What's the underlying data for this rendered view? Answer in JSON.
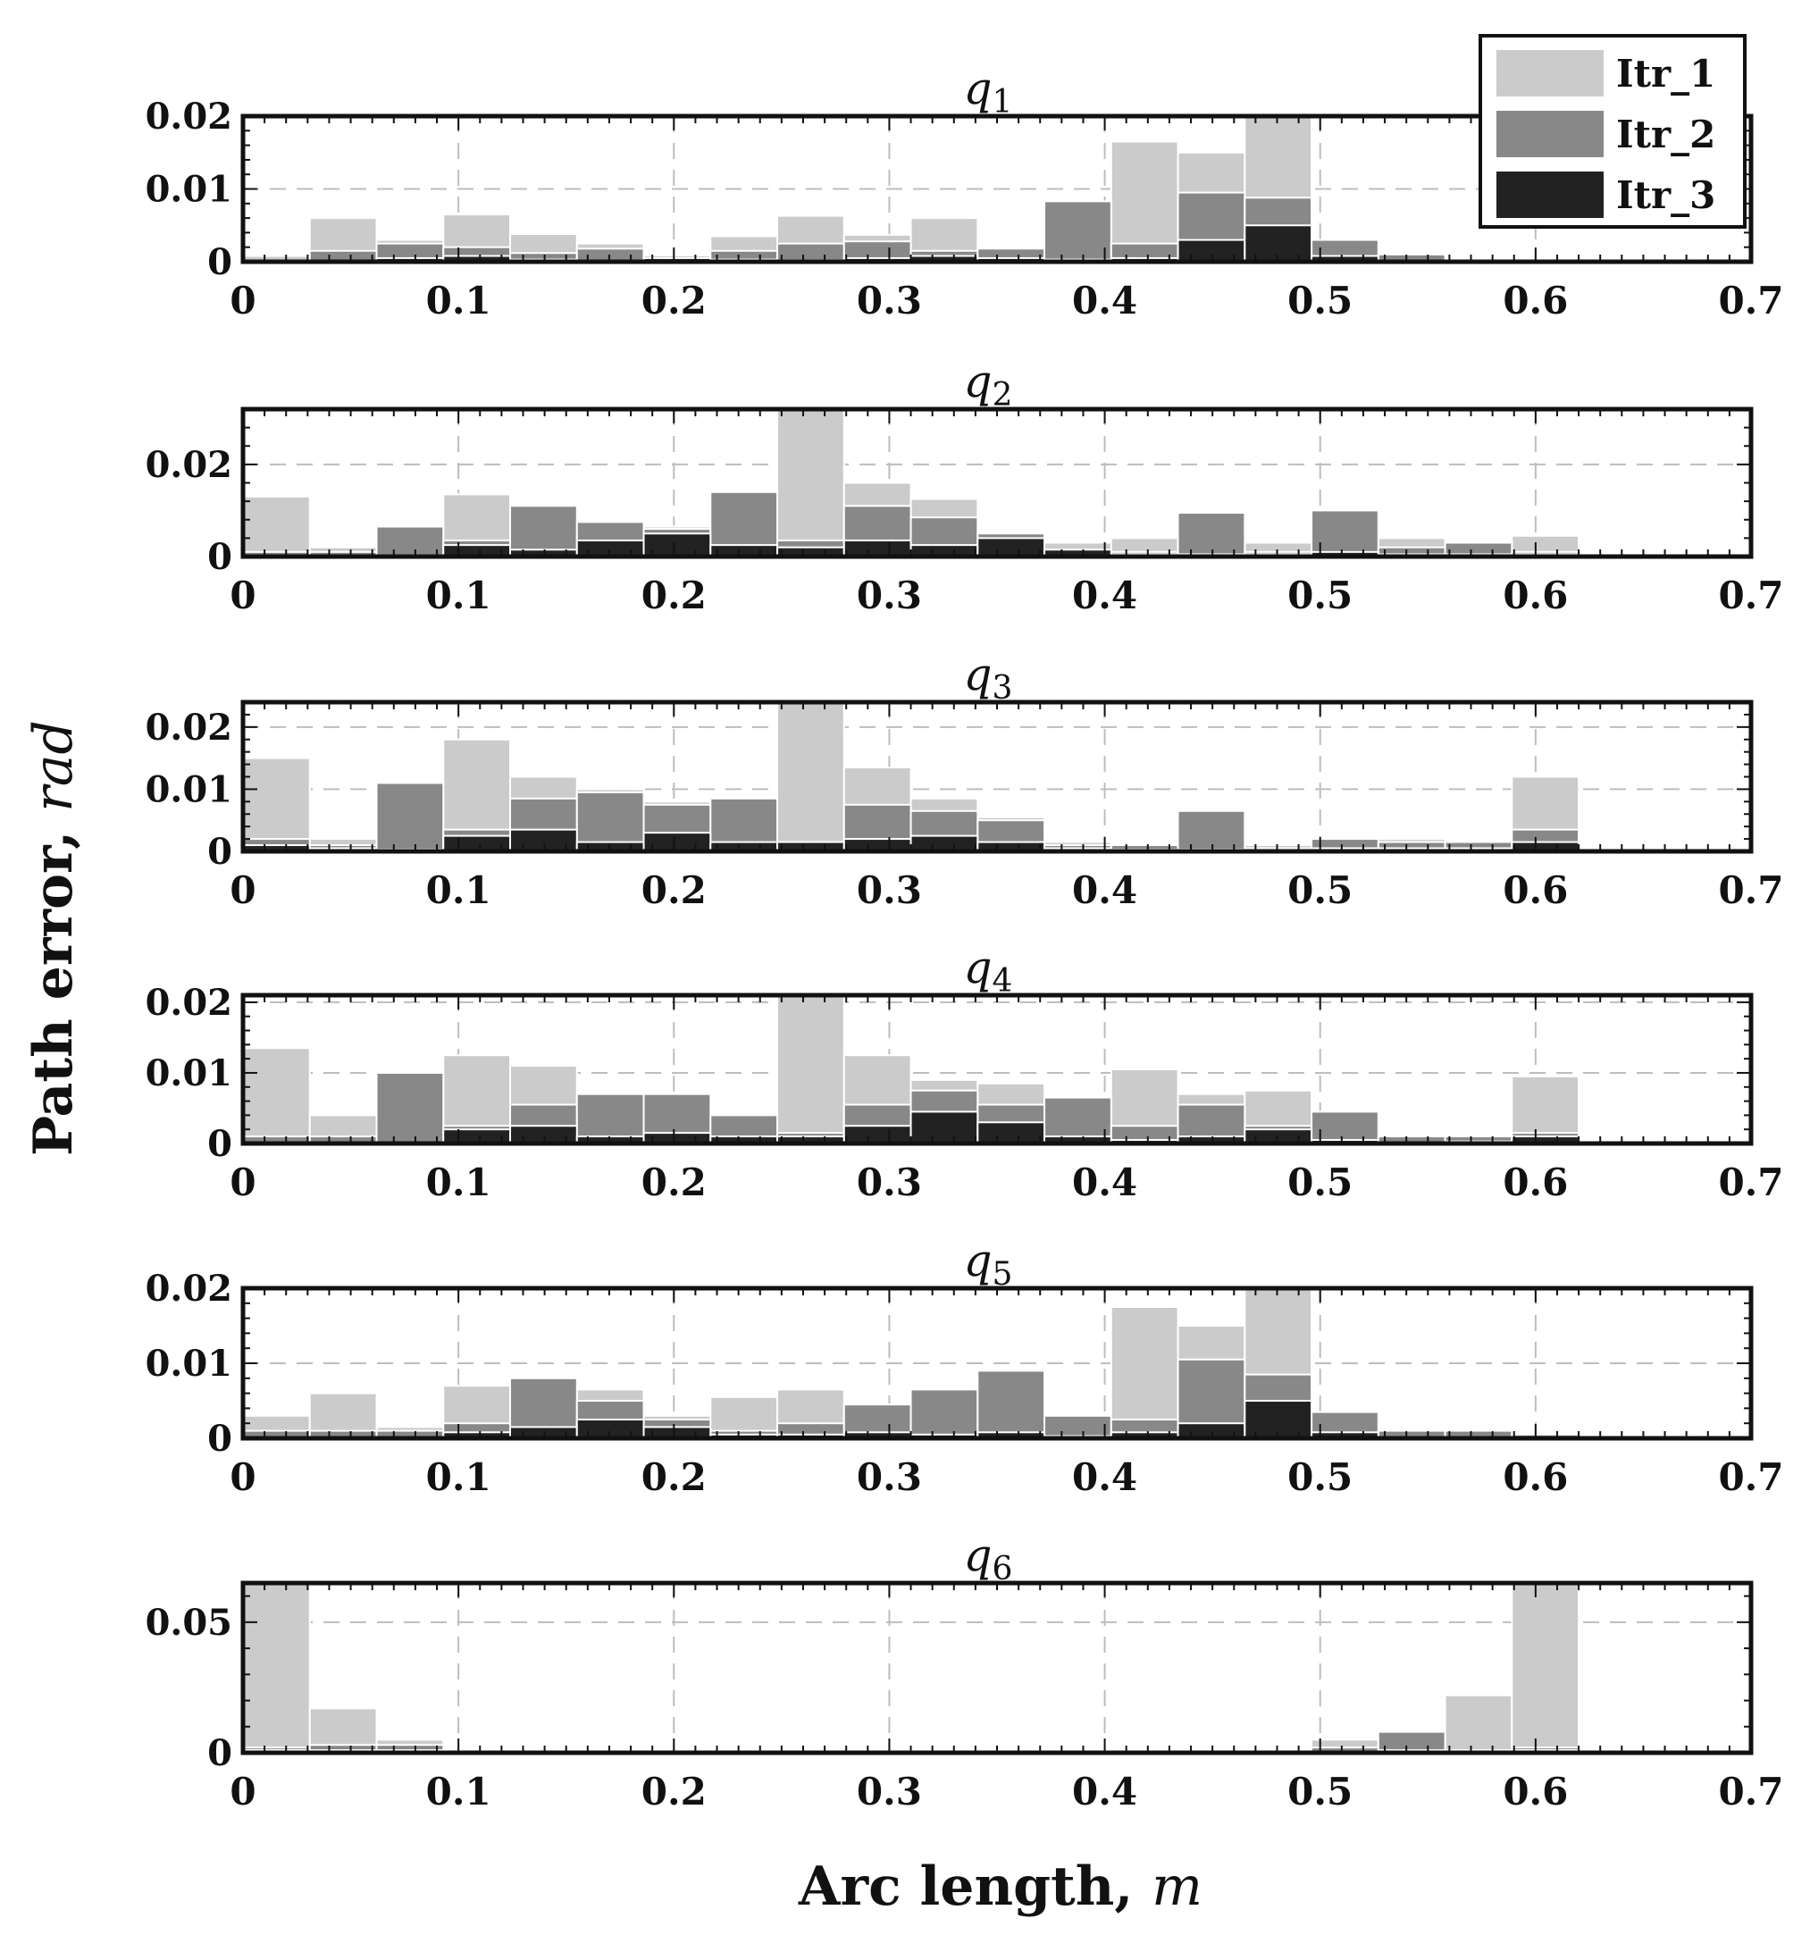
{
  "colors": {
    "itr1": "#cbcbcb",
    "itr2": "#888888",
    "itr3": "#222222",
    "grid": "#bdbdbd",
    "axis": "#111111"
  },
  "labels": {
    "ylabel": "Path error,",
    "yunit": "rad",
    "xlabel": "Arc length,",
    "xunit": "m"
  },
  "chart_data": [
    {
      "type": "bar",
      "title": "q1",
      "xlim": [
        0,
        0.7
      ],
      "ylim": [
        0,
        0.02
      ],
      "yticks": [
        0,
        0.01,
        0.02
      ],
      "ytick_labels": [
        "0",
        "0.01",
        "0.02"
      ],
      "xticks": [
        0,
        0.1,
        0.2,
        0.3,
        0.4,
        0.5,
        0.6,
        0.7
      ],
      "xtick_labels": [
        "0",
        "0.1",
        "0.2",
        "0.3",
        "0.4",
        "0.5",
        "0.6",
        "0.7"
      ],
      "x": [
        0.0155,
        0.0465,
        0.0775,
        0.1085,
        0.1395,
        0.1705,
        0.2015,
        0.2325,
        0.2635,
        0.2945,
        0.3255,
        0.3565,
        0.3875,
        0.4185,
        0.4495,
        0.4805,
        0.5115,
        0.5425,
        0.5735,
        0.6045,
        0.6355,
        0.6665,
        0.6975
      ],
      "series": [
        {
          "name": "Itr_1",
          "values": [
            0.0008,
            0.006,
            0.003,
            0.0065,
            0.0038,
            0.0025,
            0.0008,
            0.0035,
            0.0063,
            0.0037,
            0.006,
            0.002,
            0.0035,
            0.0165,
            0.015,
            0.02,
            0.002,
            0.001,
            0,
            0,
            0,
            0,
            0
          ]
        },
        {
          "name": "Itr_2",
          "values": [
            0,
            0.0015,
            0.0025,
            0.002,
            0.0012,
            0.0018,
            0.0008,
            0.0015,
            0.0025,
            0.0028,
            0.0015,
            0.0018,
            0.0083,
            0.0025,
            0.0095,
            0.0088,
            0.003,
            0.001,
            0,
            0,
            0,
            0,
            0
          ]
        },
        {
          "name": "Itr_3",
          "values": [
            0,
            0,
            0.0005,
            0.0008,
            0.0003,
            0,
            0.0005,
            0.0003,
            0.0002,
            0.0005,
            0.0008,
            0.0005,
            0.0003,
            0.0005,
            0.003,
            0.005,
            0.0008,
            0,
            0,
            0,
            0,
            0,
            0
          ]
        }
      ]
    },
    {
      "type": "bar",
      "title": "q2",
      "xlim": [
        0,
        0.7
      ],
      "ylim": [
        0,
        0.032
      ],
      "yticks": [
        0,
        0.02
      ],
      "ytick_labels": [
        "0",
        "0.02"
      ],
      "xticks": [
        0,
        0.1,
        0.2,
        0.3,
        0.4,
        0.5,
        0.6,
        0.7
      ],
      "xtick_labels": [
        "0",
        "0.1",
        "0.2",
        "0.3",
        "0.4",
        "0.5",
        "0.6",
        "0.7"
      ],
      "x": [
        0.0155,
        0.0465,
        0.0775,
        0.1085,
        0.1395,
        0.1705,
        0.2015,
        0.2325,
        0.2635,
        0.2945,
        0.3255,
        0.3565,
        0.3875,
        0.4185,
        0.4495,
        0.4805,
        0.5115,
        0.5425,
        0.5735,
        0.6045,
        0.6355,
        0.6665,
        0.6975
      ],
      "series": [
        {
          "name": "Itr_1",
          "values": [
            0.013,
            0.002,
            0.005,
            0.0135,
            0.011,
            0.007,
            0.0065,
            0.011,
            0.032,
            0.016,
            0.0125,
            0.005,
            0.003,
            0.004,
            0.006,
            0.003,
            0.004,
            0.004,
            0.003,
            0.0045,
            0,
            0,
            0
          ]
        },
        {
          "name": "Itr_2",
          "values": [
            0.001,
            0.001,
            0.0065,
            0.0035,
            0.011,
            0.0075,
            0.006,
            0.014,
            0.0035,
            0.011,
            0.0085,
            0.005,
            0.001,
            0.001,
            0.0095,
            0.001,
            0.01,
            0.002,
            0.003,
            0.001,
            0,
            0,
            0
          ]
        },
        {
          "name": "Itr_3",
          "values": [
            0,
            0,
            0.0003,
            0.0025,
            0.0015,
            0.0035,
            0.005,
            0.0025,
            0.002,
            0.0035,
            0.0025,
            0.004,
            0.0015,
            0.0005,
            0.0005,
            0.0005,
            0.001,
            0.0005,
            0.0005,
            0.0005,
            0,
            0,
            0
          ]
        }
      ]
    },
    {
      "type": "bar",
      "title": "q3",
      "xlim": [
        0,
        0.7
      ],
      "ylim": [
        0,
        0.024
      ],
      "yticks": [
        0,
        0.01,
        0.02
      ],
      "ytick_labels": [
        "0",
        "0.01",
        "0.02"
      ],
      "xticks": [
        0,
        0.1,
        0.2,
        0.3,
        0.4,
        0.5,
        0.6,
        0.7
      ],
      "xtick_labels": [
        "0",
        "0.1",
        "0.2",
        "0.3",
        "0.4",
        "0.5",
        "0.6",
        "0.7"
      ],
      "x": [
        0.0155,
        0.0465,
        0.0775,
        0.1085,
        0.1395,
        0.1705,
        0.2015,
        0.2325,
        0.2635,
        0.2945,
        0.3255,
        0.3565,
        0.3875,
        0.4185,
        0.4495,
        0.4805,
        0.5115,
        0.5425,
        0.5735,
        0.6045,
        0.6355,
        0.6665,
        0.6975
      ],
      "series": [
        {
          "name": "Itr_1",
          "values": [
            0.015,
            0.002,
            0.005,
            0.018,
            0.012,
            0.01,
            0.008,
            0.008,
            0.024,
            0.0135,
            0.0085,
            0.0055,
            0.0015,
            0.001,
            0.002,
            0.001,
            0.002,
            0.002,
            0.0015,
            0.012,
            0,
            0,
            0
          ]
        },
        {
          "name": "Itr_2",
          "values": [
            0.002,
            0.001,
            0.011,
            0.0035,
            0.0085,
            0.0095,
            0.0075,
            0.0085,
            0.0015,
            0.0075,
            0.0065,
            0.005,
            0.001,
            0.001,
            0.0065,
            0.0005,
            0.002,
            0.0015,
            0.0015,
            0.0035,
            0,
            0,
            0
          ]
        },
        {
          "name": "Itr_3",
          "values": [
            0.001,
            0.0005,
            0.0003,
            0.0025,
            0.0035,
            0.0015,
            0.003,
            0.0015,
            0.0015,
            0.002,
            0.0025,
            0.0015,
            0.0005,
            0.0003,
            0.0003,
            0.0003,
            0.0005,
            0.0005,
            0.0005,
            0.0015,
            0,
            0,
            0
          ]
        }
      ]
    },
    {
      "type": "bar",
      "title": "q4",
      "xlim": [
        0,
        0.7
      ],
      "ylim": [
        0,
        0.021
      ],
      "yticks": [
        0,
        0.01,
        0.02
      ],
      "ytick_labels": [
        "0",
        "0.01",
        "0.02"
      ],
      "xticks": [
        0,
        0.1,
        0.2,
        0.3,
        0.4,
        0.5,
        0.6,
        0.7
      ],
      "xtick_labels": [
        "0",
        "0.1",
        "0.2",
        "0.3",
        "0.4",
        "0.5",
        "0.6",
        "0.7"
      ],
      "x": [
        0.0155,
        0.0465,
        0.0775,
        0.1085,
        0.1395,
        0.1705,
        0.2015,
        0.2325,
        0.2635,
        0.2945,
        0.3255,
        0.3565,
        0.3875,
        0.4185,
        0.4495,
        0.4805,
        0.5115,
        0.5425,
        0.5735,
        0.6045,
        0.6355,
        0.6665,
        0.6975
      ],
      "series": [
        {
          "name": "Itr_1",
          "values": [
            0.0135,
            0.004,
            0.004,
            0.0125,
            0.011,
            0.007,
            0.007,
            0.004,
            0.021,
            0.0125,
            0.009,
            0.0085,
            0.0045,
            0.0105,
            0.007,
            0.0075,
            0.0045,
            0.001,
            0.001,
            0.0095,
            0,
            0,
            0
          ]
        },
        {
          "name": "Itr_2",
          "values": [
            0.001,
            0.001,
            0.01,
            0.0025,
            0.0055,
            0.007,
            0.007,
            0.004,
            0.0015,
            0.0055,
            0.0075,
            0.0055,
            0.0065,
            0.0025,
            0.0055,
            0.0025,
            0.0045,
            0.001,
            0.001,
            0.0015,
            0,
            0,
            0
          ]
        },
        {
          "name": "Itr_3",
          "values": [
            0,
            0,
            0,
            0.002,
            0.0025,
            0.001,
            0.0015,
            0.001,
            0.001,
            0.0025,
            0.0045,
            0.003,
            0.001,
            0.0005,
            0.001,
            0.002,
            0.0005,
            0,
            0.0003,
            0.001,
            0,
            0,
            0
          ]
        }
      ]
    },
    {
      "type": "bar",
      "title": "q5",
      "xlim": [
        0,
        0.7
      ],
      "ylim": [
        0,
        0.02
      ],
      "yticks": [
        0,
        0.01,
        0.02
      ],
      "ytick_labels": [
        "0",
        "0.01",
        "0.02"
      ],
      "xticks": [
        0,
        0.1,
        0.2,
        0.3,
        0.4,
        0.5,
        0.6,
        0.7
      ],
      "xtick_labels": [
        "0",
        "0.1",
        "0.2",
        "0.3",
        "0.4",
        "0.5",
        "0.6",
        "0.7"
      ],
      "x": [
        0.0155,
        0.0465,
        0.0775,
        0.1085,
        0.1395,
        0.1705,
        0.2015,
        0.2325,
        0.2635,
        0.2945,
        0.3255,
        0.3565,
        0.3875,
        0.4185,
        0.4495,
        0.4805,
        0.5115,
        0.5425,
        0.5735,
        0.6045,
        0.6355,
        0.6665,
        0.6975
      ],
      "series": [
        {
          "name": "Itr_1",
          "values": [
            0.003,
            0.006,
            0.0015,
            0.007,
            0.0065,
            0.0065,
            0.003,
            0.0055,
            0.0065,
            0.0045,
            0.0025,
            0.0025,
            0.001,
            0.0175,
            0.015,
            0.02,
            0.001,
            0.001,
            0.001,
            0.0005,
            0,
            0,
            0
          ]
        },
        {
          "name": "Itr_2",
          "values": [
            0.001,
            0.001,
            0.001,
            0.002,
            0.008,
            0.005,
            0.0025,
            0.001,
            0.002,
            0.0045,
            0.0065,
            0.009,
            0.003,
            0.0025,
            0.0105,
            0.0085,
            0.0035,
            0.001,
            0.001,
            0.0005,
            0,
            0,
            0
          ]
        },
        {
          "name": "Itr_3",
          "values": [
            0,
            0,
            0,
            0.0008,
            0.0015,
            0.0025,
            0.0015,
            0.0005,
            0.0005,
            0.0008,
            0.0005,
            0.0008,
            0.0003,
            0.0008,
            0.002,
            0.005,
            0.0008,
            0,
            0,
            0,
            0,
            0,
            0
          ]
        }
      ]
    },
    {
      "type": "bar",
      "title": "q6",
      "xlim": [
        0,
        0.7
      ],
      "ylim": [
        0,
        0.065
      ],
      "yticks": [
        0,
        0.05
      ],
      "ytick_labels": [
        "0",
        "0.05"
      ],
      "xticks": [
        0,
        0.1,
        0.2,
        0.3,
        0.4,
        0.5,
        0.6,
        0.7
      ],
      "xtick_labels": [
        "0",
        "0.1",
        "0.2",
        "0.3",
        "0.4",
        "0.5",
        "0.6",
        "0.7"
      ],
      "x": [
        0.0155,
        0.0465,
        0.0775,
        0.1085,
        0.1395,
        0.1705,
        0.2015,
        0.2325,
        0.2635,
        0.2945,
        0.3255,
        0.3565,
        0.3875,
        0.4185,
        0.4495,
        0.4805,
        0.5115,
        0.5425,
        0.5735,
        0.6045,
        0.6355,
        0.6665,
        0.6975
      ],
      "series": [
        {
          "name": "Itr_1",
          "values": [
            0.065,
            0.017,
            0.005,
            0,
            0,
            0,
            0,
            0,
            0,
            0,
            0,
            0,
            0,
            0,
            0,
            0,
            0.005,
            0.003,
            0.022,
            0.065,
            0,
            0,
            0
          ]
        },
        {
          "name": "Itr_2",
          "values": [
            0.002,
            0.003,
            0.003,
            0,
            0,
            0,
            0,
            0,
            0,
            0,
            0,
            0,
            0,
            0,
            0,
            0,
            0.002,
            0.008,
            0.001,
            0.002,
            0,
            0,
            0
          ]
        },
        {
          "name": "Itr_3",
          "values": [
            0.001,
            0.001,
            0.001,
            0,
            0,
            0,
            0,
            0,
            0,
            0,
            0,
            0,
            0,
            0,
            0,
            0,
            0,
            0.001,
            0,
            0.001,
            0,
            0,
            0
          ]
        }
      ]
    }
  ]
}
